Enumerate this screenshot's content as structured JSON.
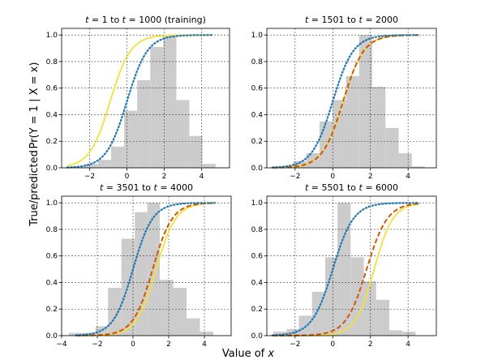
{
  "figure": {
    "xlabel_prefix": "Value of ",
    "xlabel_var": "x",
    "ylabel_left": "True/predicted",
    "ylabel_formula": "Pr(Y = 1 | X = x)"
  },
  "chart_data": [
    {
      "type": "bar",
      "title_parts": [
        "t",
        " = 1 to ",
        "t",
        " = 1000 (training)"
      ],
      "xlim": [
        -3.5,
        5.5
      ],
      "ylim": [
        0,
        1.05
      ],
      "xticks": [
        -2,
        0,
        2,
        4
      ],
      "yticks": [
        0.0,
        0.2,
        0.4,
        0.6,
        0.8,
        1.0
      ],
      "grid": true,
      "histogram": {
        "bin_edges": [
          -2.95,
          -2.25,
          -1.55,
          -0.85,
          -0.15,
          0.55,
          1.25,
          1.95,
          2.65,
          3.35,
          4.05,
          4.75
        ],
        "heights": [
          0.01,
          0.03,
          0.06,
          0.16,
          0.43,
          0.66,
          0.91,
          0.99,
          0.51,
          0.24,
          0.03
        ]
      },
      "series": [
        {
          "style": "solid",
          "color": "#f2e13b",
          "center": -0.9,
          "scale": 0.55
        },
        {
          "style": "dotted",
          "color": "#1f77b4",
          "center": 0.0,
          "scale": 0.55
        }
      ]
    },
    {
      "type": "bar",
      "title_parts": [
        "t",
        " = 1501 to ",
        "t",
        " = 2000"
      ],
      "xlim": [
        -3.5,
        5.5
      ],
      "ylim": [
        0,
        1.05
      ],
      "xticks": [
        -2,
        0,
        2,
        4
      ],
      "yticks": [
        0.0,
        0.2,
        0.4,
        0.6,
        0.8,
        1.0
      ],
      "grid": true,
      "histogram": {
        "bin_edges": [
          -2.8,
          -2.1,
          -1.4,
          -0.7,
          0.0,
          0.7,
          1.4,
          2.1,
          2.8,
          3.5,
          4.2,
          4.9
        ],
        "heights": [
          0.01,
          0.05,
          0.11,
          0.35,
          0.51,
          0.69,
          1.0,
          0.61,
          0.3,
          0.11,
          0.01
        ]
      },
      "series": [
        {
          "style": "solid",
          "color": "#f2e13b",
          "center": 0.55,
          "scale": 0.55
        },
        {
          "style": "dashed",
          "color": "#d45500",
          "center": 0.55,
          "scale": 0.55
        },
        {
          "style": "dotted",
          "color": "#1f77b4",
          "center": 0.0,
          "scale": 0.55
        }
      ]
    },
    {
      "type": "bar",
      "title_parts": [
        "t",
        " = 3501 to ",
        "t",
        " = 4000"
      ],
      "xlim": [
        -4,
        5.5
      ],
      "ylim": [
        0,
        1.05
      ],
      "xticks": [
        -4,
        -2,
        0,
        2,
        4
      ],
      "yticks": [
        0.0,
        0.2,
        0.4,
        0.6,
        0.8,
        1.0
      ],
      "grid": true,
      "histogram": {
        "bin_edges": [
          -3.6,
          -2.85,
          -2.1,
          -1.4,
          -0.65,
          0.1,
          0.8,
          1.5,
          2.25,
          3.0,
          3.75,
          4.5
        ],
        "heights": [
          0.02,
          0.02,
          0.07,
          0.36,
          0.73,
          0.93,
          1.0,
          0.42,
          0.36,
          0.13,
          0.03
        ]
      },
      "series": [
        {
          "style": "solid",
          "color": "#f2e13b",
          "center": 1.3,
          "scale": 0.55
        },
        {
          "style": "dashed",
          "color": "#d45500",
          "center": 1.1,
          "scale": 0.55
        },
        {
          "style": "dotted",
          "color": "#1f77b4",
          "center": 0.0,
          "scale": 0.55
        }
      ]
    },
    {
      "type": "bar",
      "title_parts": [
        "t",
        " = 5501 to ",
        "t",
        " = 6000"
      ],
      "xlim": [
        -3.5,
        5.5
      ],
      "ylim": [
        0,
        1.05
      ],
      "xticks": [
        -2,
        0,
        2,
        4
      ],
      "yticks": [
        0.0,
        0.2,
        0.4,
        0.6,
        0.8,
        1.0
      ],
      "grid": true,
      "histogram": {
        "bin_edges": [
          -3.15,
          -2.45,
          -1.8,
          -1.1,
          -0.4,
          0.25,
          0.95,
          1.65,
          2.3,
          3.0,
          3.7,
          4.4
        ],
        "heights": [
          0.03,
          0.05,
          0.15,
          0.33,
          0.59,
          1.0,
          0.59,
          0.41,
          0.27,
          0.04,
          0.03
        ]
      },
      "series": [
        {
          "style": "solid",
          "color": "#f2e13b",
          "center": 2.2,
          "scale": 0.5
        },
        {
          "style": "dashed",
          "color": "#d45500",
          "center": 1.8,
          "scale": 0.55
        },
        {
          "style": "dotted",
          "color": "#1f77b4",
          "center": 0.0,
          "scale": 0.55
        }
      ]
    }
  ]
}
